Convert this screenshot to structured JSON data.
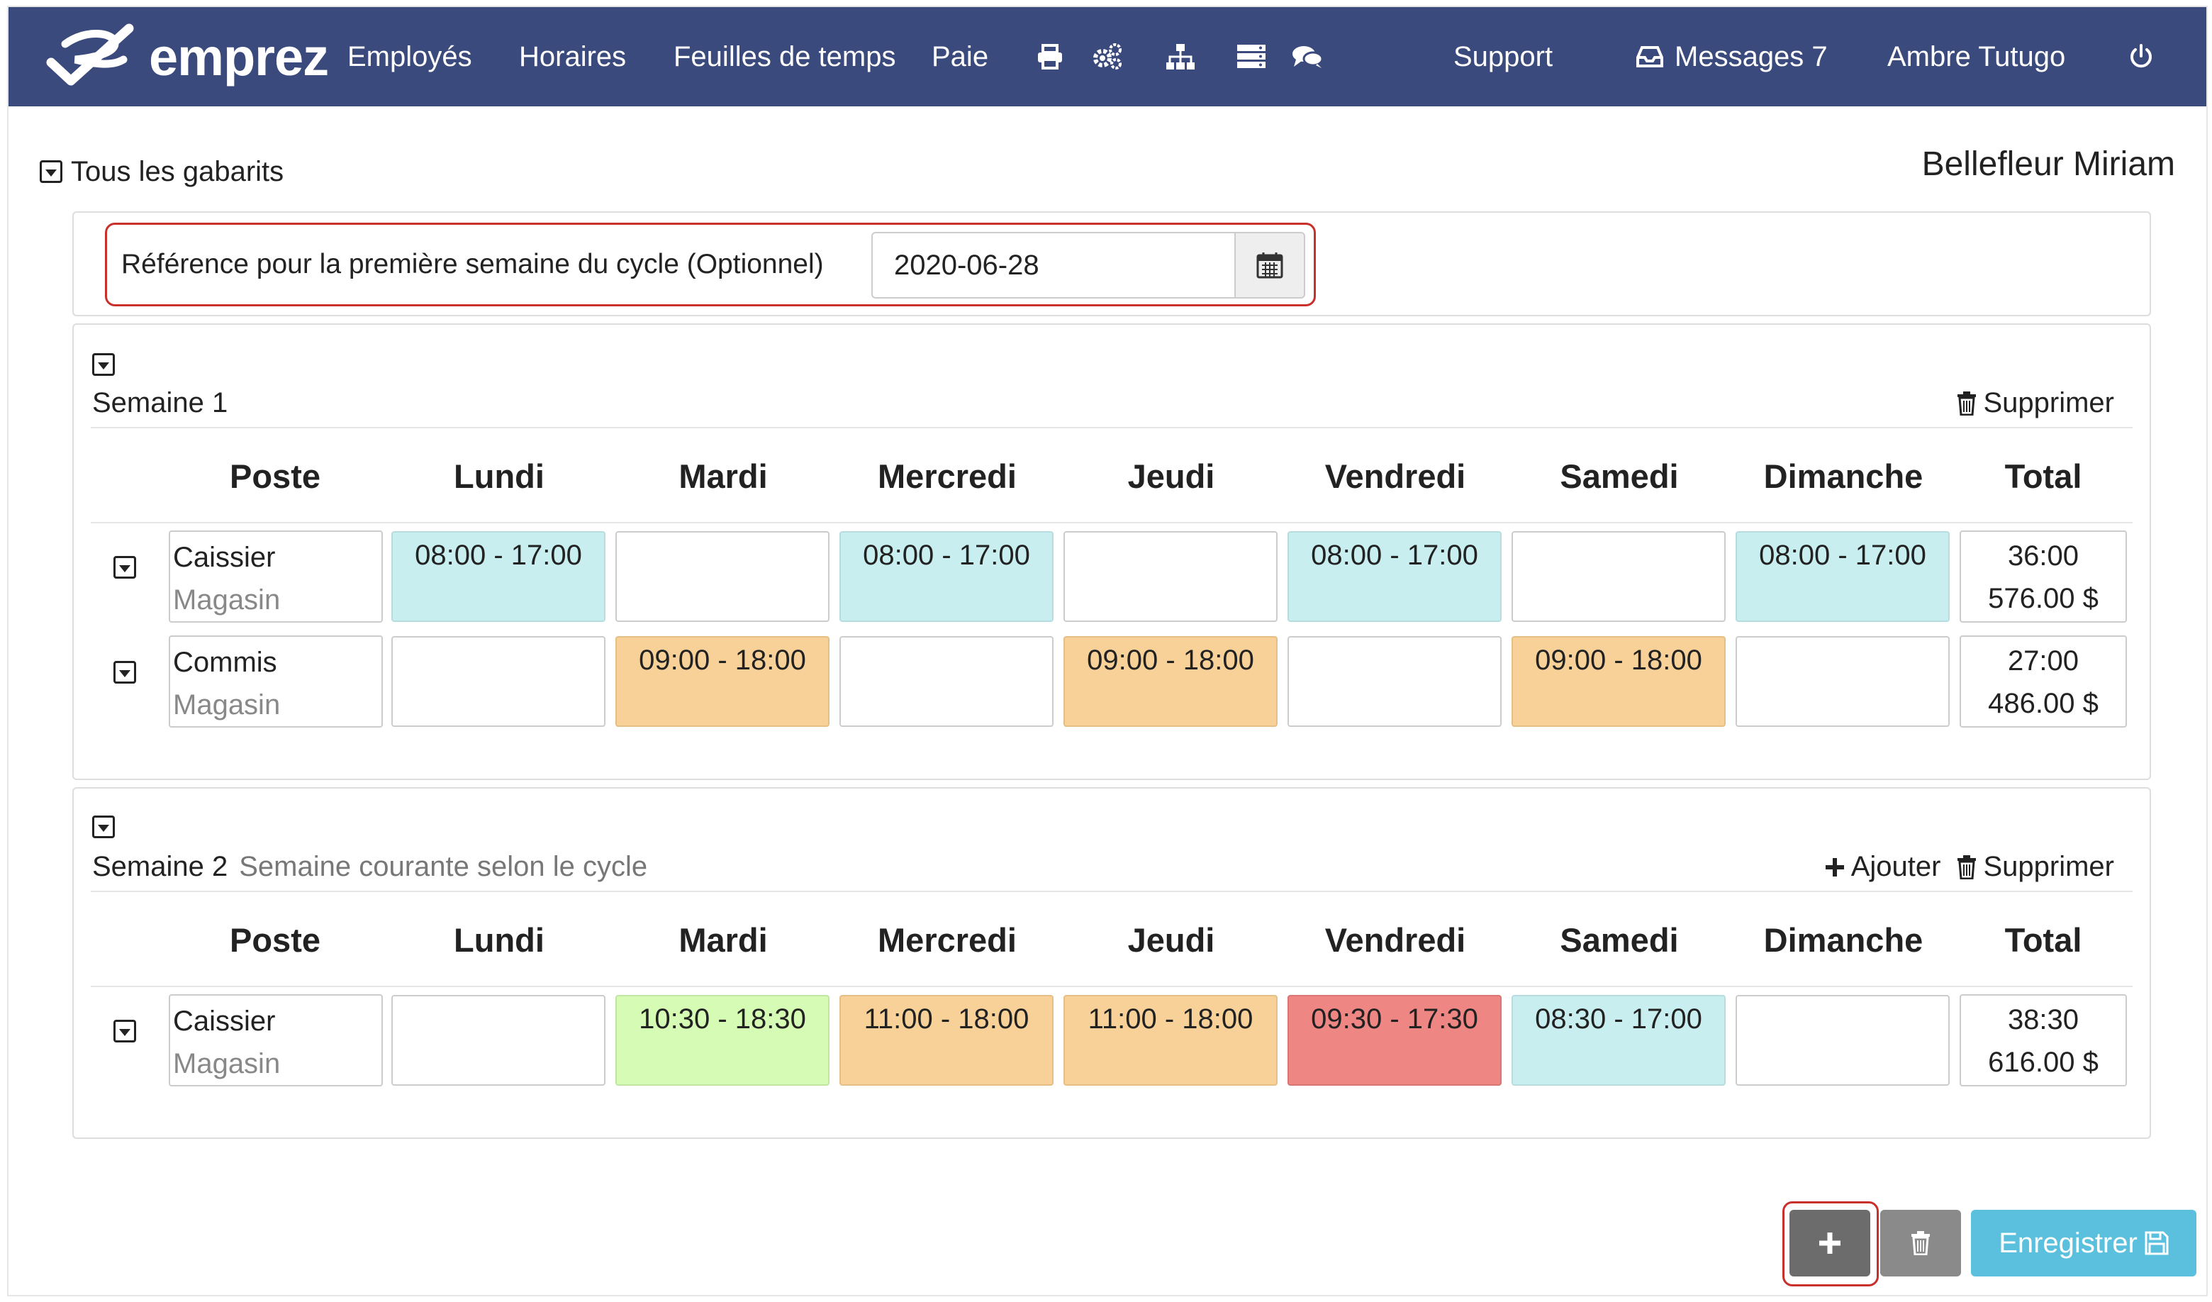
{
  "app": {
    "brand": "emprez"
  },
  "nav": {
    "items": [
      "Employés",
      "Horaires",
      "Feuilles de temps",
      "Paie"
    ],
    "support": "Support",
    "messages": "Messages 7",
    "user": "Ambre Tutugo"
  },
  "page": {
    "all_templates": "Tous les gabarits",
    "employee_name": "Bellefleur Miriam"
  },
  "reference": {
    "label": "Référence pour la première semaine du cycle (Optionnel)",
    "date_value": "2020-06-28"
  },
  "columns": [
    "Poste",
    "Lundi",
    "Mardi",
    "Mercredi",
    "Jeudi",
    "Vendredi",
    "Samedi",
    "Dimanche",
    "Total"
  ],
  "weeks": [
    {
      "title": "Semaine 1",
      "subtitle": "",
      "delete_label": "Supprimer",
      "rows": [
        {
          "poste": "Caissier",
          "lieu": "Magasin",
          "days": [
            "08:00 - 17:00",
            "",
            "08:00 - 17:00",
            "",
            "08:00 - 17:00",
            "",
            "08:00 - 17:00"
          ],
          "colors": [
            "teal",
            "",
            "teal",
            "",
            "teal",
            "",
            "teal"
          ],
          "total_hours": "36:00",
          "total_amount": "576.00 $"
        },
        {
          "poste": "Commis",
          "lieu": "Magasin",
          "days": [
            "",
            "09:00 - 18:00",
            "",
            "09:00 - 18:00",
            "",
            "09:00 - 18:00",
            ""
          ],
          "colors": [
            "",
            "orange",
            "",
            "orange",
            "",
            "orange",
            ""
          ],
          "total_hours": "27:00",
          "total_amount": "486.00 $"
        }
      ]
    },
    {
      "title": "Semaine 2",
      "subtitle": "Semaine courante selon le cycle",
      "add_label": "Ajouter",
      "delete_label": "Supprimer",
      "rows": [
        {
          "poste": "Caissier",
          "lieu": "Magasin",
          "days": [
            "",
            "10:30 - 18:30",
            "11:00 - 18:00",
            "11:00 - 18:00",
            "09:30 - 17:30",
            "08:30 - 17:00",
            ""
          ],
          "colors": [
            "",
            "green",
            "orange",
            "orange",
            "red",
            "teal",
            ""
          ],
          "total_hours": "38:30",
          "total_amount": "616.00 $"
        }
      ]
    }
  ],
  "buttons": {
    "save": "Enregistrer"
  },
  "colors": {
    "nav": "#3b4a7c",
    "teal": "#c8eef0",
    "orange": "#f8d199",
    "green": "#d5fbb4",
    "red": "#ee8683",
    "save": "#5bc0de",
    "highlight": "#c9302c"
  }
}
